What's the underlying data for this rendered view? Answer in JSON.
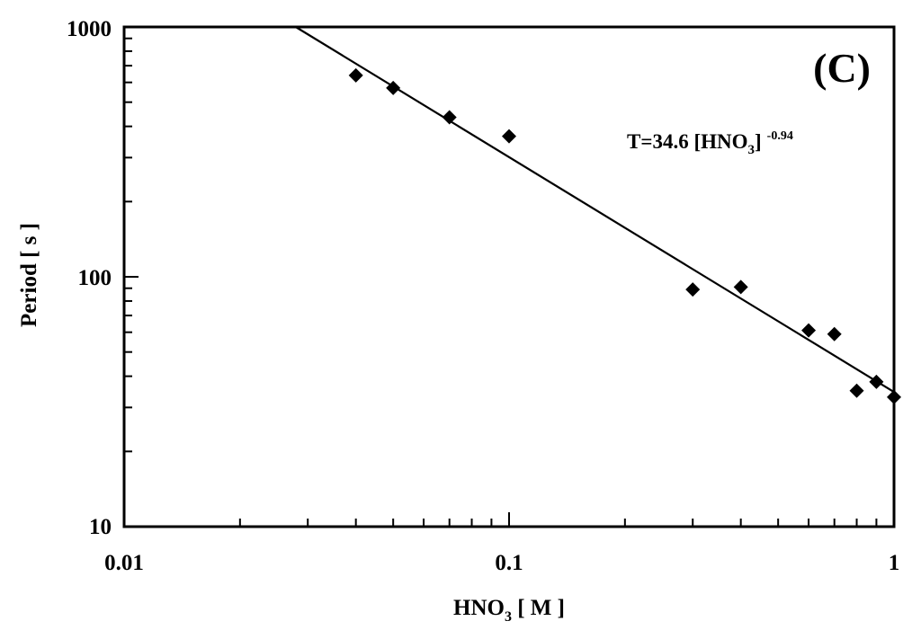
{
  "chart_data": {
    "type": "scatter",
    "panel_label": "(C)",
    "xlabel": {
      "main": "HNO",
      "sub": "3",
      "tail": " [ M ]"
    },
    "ylabel": "Period [ s ]",
    "x_scale": "log",
    "y_scale": "log",
    "xlim": [
      0.01,
      1
    ],
    "ylim": [
      10,
      1000
    ],
    "x_tick_labels": [
      "0.01",
      "0.1",
      "1"
    ],
    "y_tick_labels": [
      "10",
      "100",
      "1000"
    ],
    "grid": false,
    "legend": "none",
    "marker": "diamond",
    "color": "#000000",
    "series": [
      {
        "x": [
          0.04,
          0.05,
          0.07,
          0.1,
          0.3,
          0.4,
          0.6,
          0.7,
          0.8,
          0.9,
          1.0
        ],
        "y": [
          640,
          570,
          435,
          365,
          89,
          91,
          61,
          59,
          35,
          38,
          33
        ]
      }
    ],
    "fit_line": {
      "label": {
        "prefix": "T=34.6 [HNO",
        "sub": "3",
        "suffix": "]",
        "exponent": "-0.94"
      },
      "coefficient": 34.6,
      "exponent": -0.94
    }
  }
}
